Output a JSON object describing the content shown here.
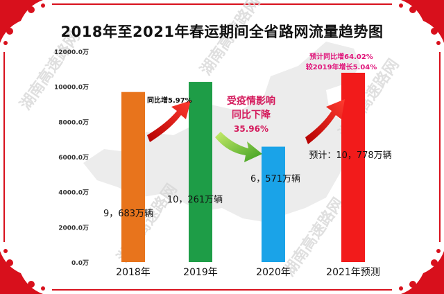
{
  "title": "2018年至2021年春运期间全省路网流量趋势图",
  "watermark": "湖南高速路网",
  "chart_data": {
    "type": "bar",
    "categories": [
      "2018年",
      "2019年",
      "2020年",
      "2021年预测"
    ],
    "values": [
      9683,
      10261,
      6571,
      10778
    ],
    "data_labels": [
      "9，683万辆",
      "10，261万辆",
      "6，571万辆",
      "预计：10，778万辆"
    ],
    "colors": [
      "#e8741c",
      "#1e9d47",
      "#1aa3e8",
      "#f21b1b"
    ],
    "ylim": [
      0,
      12000
    ],
    "yticks": [
      0,
      2000,
      4000,
      6000,
      8000,
      10000,
      12000
    ],
    "ytick_labels": [
      "0.0万",
      "2000.0万",
      "4000.0万",
      "6000.0万",
      "8000.0万",
      "10000.0万",
      "12000.0万"
    ],
    "grid": false,
    "annotations": {
      "growth_2019": "同比增5.97%",
      "impact_line1": "受疫情影响",
      "impact_line2": "同比下降",
      "impact_pct": "35.96%",
      "forecast_line1": "预计同比增64.02%",
      "forecast_line2": "较2019年增长5.04%"
    }
  }
}
